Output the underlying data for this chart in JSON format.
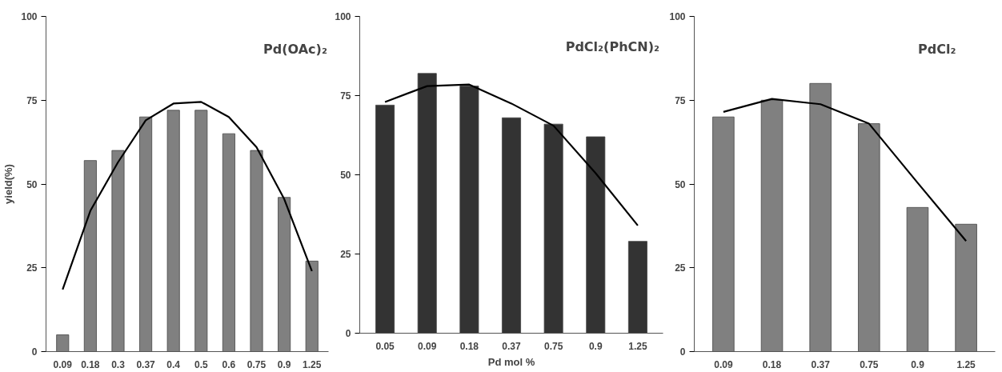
{
  "chart_data": [
    {
      "type": "bar",
      "title": "Pd(OAc)₂",
      "ylabel": "yield(%)",
      "categories": [
        "0.09",
        "0.18",
        "0.3",
        "0.37",
        "0.4",
        "0.5",
        "0.6",
        "0.75",
        "0.9",
        "1.25"
      ],
      "ylim": [
        0,
        100
      ],
      "yticks": [
        0,
        25,
        50,
        75,
        100
      ],
      "series": [
        {
          "color": "#808080",
          "values": [
            5,
            57,
            60,
            70,
            72,
            72,
            65,
            60,
            46,
            27
          ]
        },
        {
          "type": "line",
          "color": "#000000",
          "values": [
            18.5,
            42,
            56.5,
            69,
            74,
            74.5,
            70,
            61,
            45.5,
            24
          ]
        }
      ]
    },
    {
      "type": "bar",
      "title": "PdCl₂(PhCN)₂",
      "xlabel": "Pd mol %",
      "categories": [
        "0.05",
        "0.09",
        "0.18",
        "0.37",
        "0.75",
        "0.9",
        "1.25"
      ],
      "ylim": [
        0,
        100
      ],
      "yticks": [
        0,
        25,
        50,
        75,
        100
      ],
      "series": [
        {
          "color": "#333333",
          "values": [
            72,
            82,
            78,
            68,
            66,
            62,
            29
          ]
        },
        {
          "type": "line",
          "color": "#000000",
          "values": [
            73,
            78,
            78.5,
            72.5,
            65.5,
            50.5,
            34
          ]
        }
      ]
    },
    {
      "type": "bar",
      "title": "PdCl₂",
      "categories": [
        "0.09",
        "0.18",
        "0.37",
        "0.75",
        "0.9",
        "1.25"
      ],
      "ylim": [
        0,
        100
      ],
      "yticks": [
        0,
        25,
        50,
        75,
        100
      ],
      "series": [
        {
          "color": "#808080",
          "values": [
            70,
            75,
            80,
            68,
            43,
            38
          ]
        },
        {
          "type": "line",
          "color": "#000000",
          "values": [
            71.5,
            75.4,
            73.8,
            68,
            50.4,
            33
          ]
        }
      ]
    }
  ]
}
